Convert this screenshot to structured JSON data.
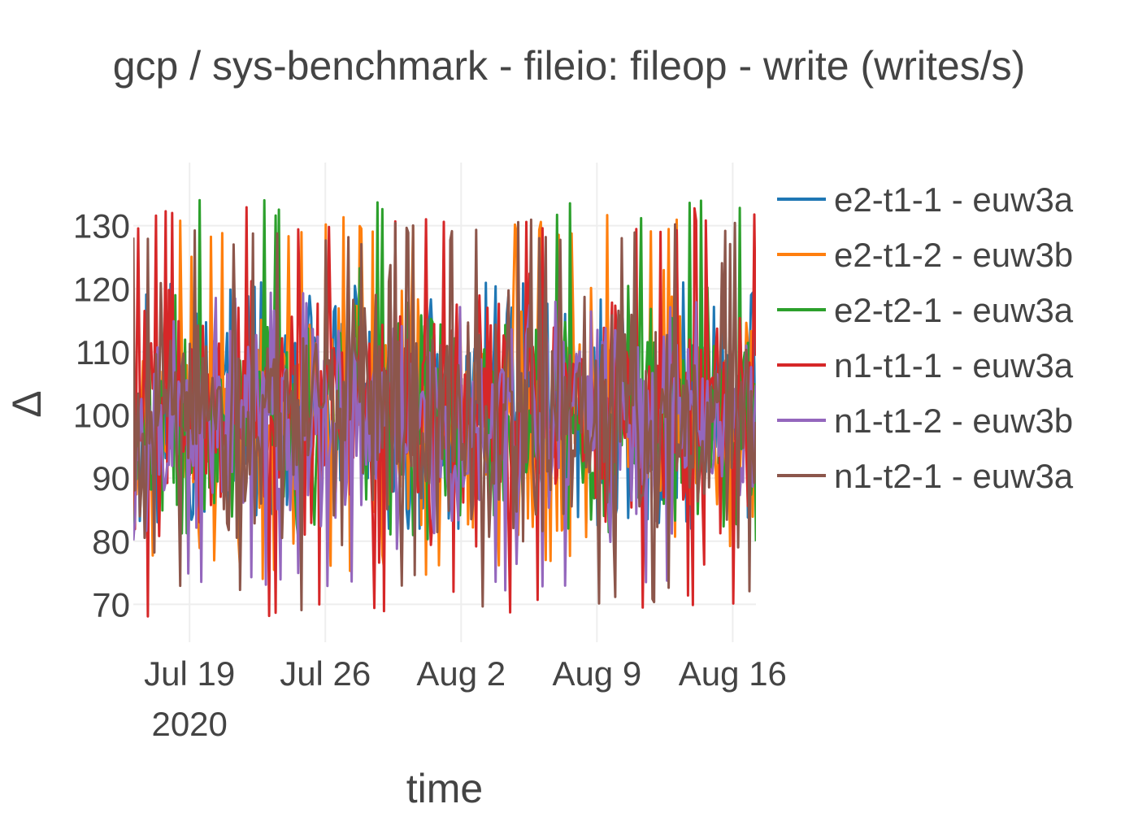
{
  "chart_data": {
    "type": "line",
    "title": "gcp / sys-benchmark - fileio: fileop - write (writes/s)",
    "xlabel": "time",
    "ylabel": "Δ",
    "x_range": [
      "2020-07-16",
      "2020-08-17"
    ],
    "x_ticks": [
      {
        "date": "2020-07-19",
        "label": "Jul 19",
        "sublabel": "2020"
      },
      {
        "date": "2020-07-26",
        "label": "Jul 26",
        "sublabel": ""
      },
      {
        "date": "2020-08-02",
        "label": "Aug 2",
        "sublabel": ""
      },
      {
        "date": "2020-08-09",
        "label": "Aug 9",
        "sublabel": ""
      },
      {
        "date": "2020-08-16",
        "label": "Aug 16",
        "sublabel": ""
      }
    ],
    "ylim": [
      64,
      140
    ],
    "y_ticks": [
      70,
      80,
      90,
      100,
      110,
      120,
      130
    ],
    "grid": true,
    "legend_position": "right",
    "approx_points_per_day": 12,
    "series": [
      {
        "name": "e2-t1-1 - euw3a",
        "color": "#1f77b4",
        "mean": 100,
        "low": 82,
        "high": 121,
        "seed": 11
      },
      {
        "name": "e2-t1-2 - euw3b",
        "color": "#ff7f0e",
        "mean": 100,
        "low": 74,
        "high": 132,
        "seed": 23
      },
      {
        "name": "e2-t2-1 - euw3a",
        "color": "#2ca02c",
        "mean": 100,
        "low": 80,
        "high": 135,
        "seed": 37
      },
      {
        "name": "n1-t1-1 - euw3a",
        "color": "#d62728",
        "mean": 100,
        "low": 68,
        "high": 133,
        "seed": 41
      },
      {
        "name": "n1-t1-2 - euw3b",
        "color": "#9467bd",
        "mean": 99,
        "low": 72,
        "high": 120,
        "seed": 53
      },
      {
        "name": "n1-t2-1 - euw3a",
        "color": "#8c564b",
        "mean": 100,
        "low": 69,
        "high": 131,
        "seed": 67
      }
    ]
  }
}
